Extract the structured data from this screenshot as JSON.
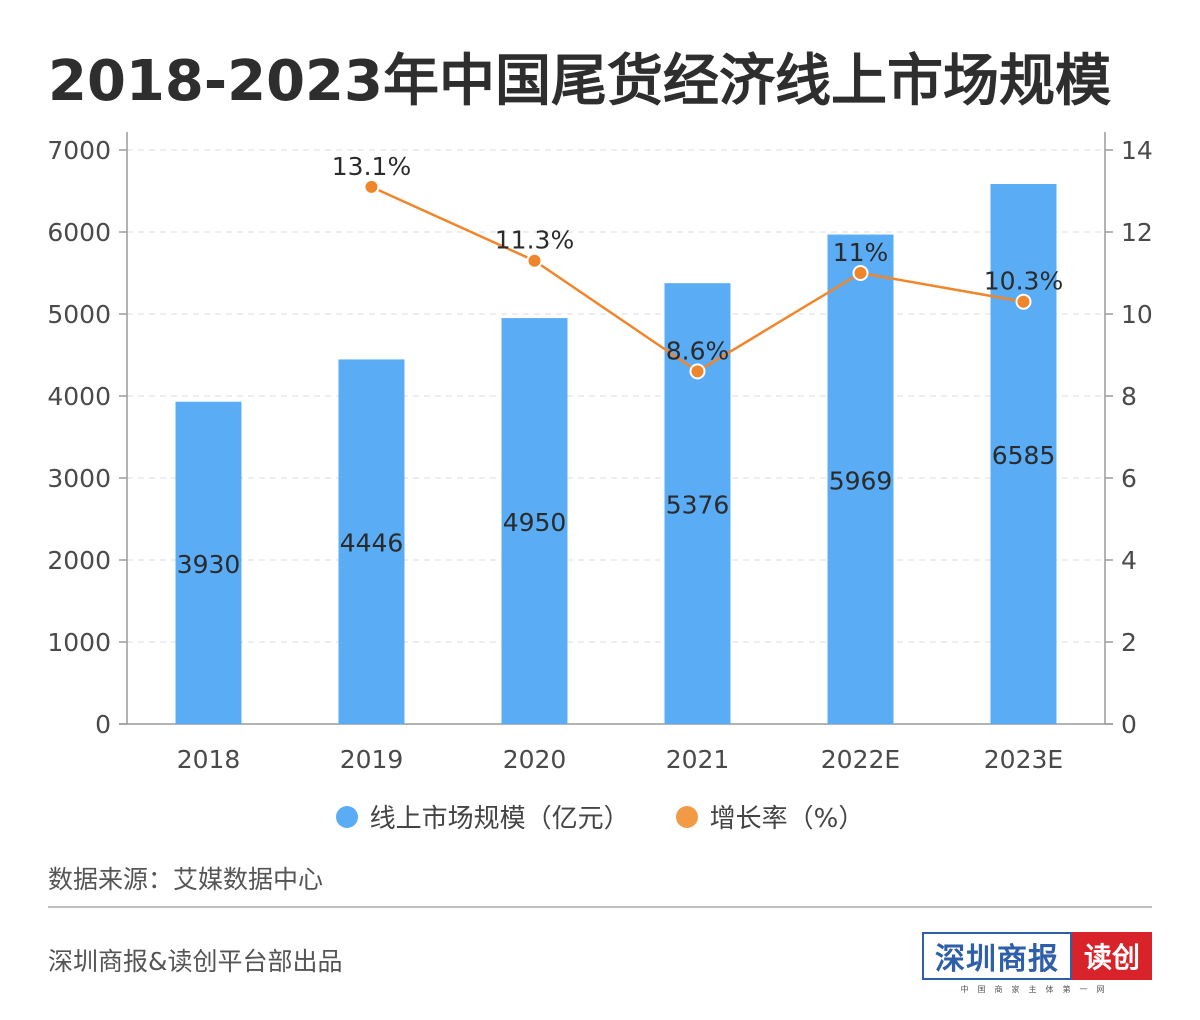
{
  "header": {
    "title": "2018-2023年中国尾货经济线上市场规模"
  },
  "chart_data": {
    "type": "bar",
    "title": "2018-2023年中国尾货经济线上市场规模",
    "categories": [
      "2018",
      "2019",
      "2020",
      "2021",
      "2022E",
      "2023E"
    ],
    "series": [
      {
        "name": "线上市场规模（亿元）",
        "type": "bar",
        "axis": "left",
        "color": "#5aacf5",
        "values": [
          3930,
          4446,
          4950,
          5376,
          5969,
          6585
        ],
        "labels": [
          "3930",
          "4446",
          "4950",
          "5376",
          "5969",
          "6585"
        ]
      },
      {
        "name": "增长率（%）",
        "type": "line",
        "axis": "right",
        "color": "#f0862c",
        "values": [
          null,
          13.1,
          11.3,
          8.6,
          11,
          10.3
        ],
        "labels": [
          "",
          "13.1%",
          "11.3%",
          "8.6%",
          "11%",
          "10.3%"
        ]
      }
    ],
    "y_left": {
      "ylim": [
        0,
        7000
      ],
      "ticks": [
        "0",
        "1000",
        "2000",
        "3000",
        "4000",
        "5000",
        "6000",
        "7000"
      ]
    },
    "y_right": {
      "ylim": [
        0,
        14
      ],
      "ticks": [
        "0",
        "2",
        "4",
        "6",
        "8",
        "10",
        "12",
        "14"
      ]
    },
    "grid": true,
    "legend": "bottom-center",
    "legend_items": [
      {
        "label": "线上市场规模（亿元）",
        "color": "#5aacf5"
      },
      {
        "label": "增长率（%）",
        "color": "#f0862c"
      }
    ]
  },
  "footer": {
    "source": "数据来源：艾媒数据中心",
    "credit": "深圳商报&读创平台部出品",
    "logo_left": "深圳商报",
    "logo_right": "读创",
    "logo_sub": "中国商家主体第一网"
  }
}
